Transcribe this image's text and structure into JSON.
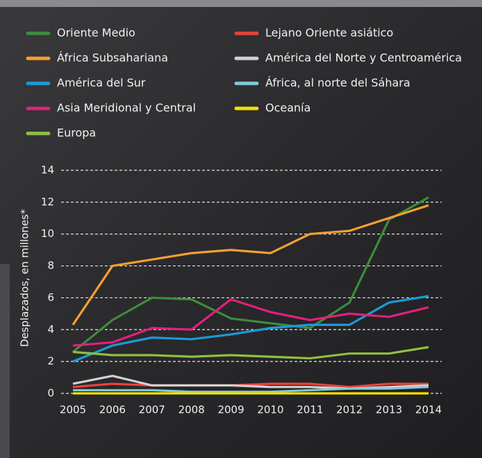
{
  "chart_data": {
    "type": "line",
    "ylabel": "Desplazados, en millones*",
    "x": [
      2005,
      2006,
      2007,
      2008,
      2009,
      2010,
      2011,
      2012,
      2013,
      2014
    ],
    "xlim": [
      2005,
      2014
    ],
    "xticks": [
      2005,
      2006,
      2007,
      2008,
      2009,
      2010,
      2011,
      2012,
      2013,
      2014
    ],
    "ylim": [
      0,
      14
    ],
    "yticks": [
      0,
      2,
      4,
      6,
      8,
      10,
      12,
      14
    ],
    "grid": true,
    "series": [
      {
        "name": "Oriente Medio",
        "color": "#3c8c3c",
        "values": [
          2.6,
          4.6,
          6.0,
          5.9,
          4.7,
          4.4,
          4.1,
          5.7,
          10.9,
          12.3
        ]
      },
      {
        "name": "África Subsahariana",
        "color": "#f5a032",
        "values": [
          4.3,
          8.0,
          8.4,
          8.8,
          9.0,
          8.8,
          10.0,
          10.2,
          11.0,
          11.8
        ]
      },
      {
        "name": "América del Sur",
        "color": "#1b9ad8",
        "values": [
          2.0,
          3.0,
          3.5,
          3.4,
          3.7,
          4.1,
          4.3,
          4.3,
          5.7,
          6.1
        ]
      },
      {
        "name": "Asia Meridional y Central",
        "color": "#e0217c",
        "values": [
          3.0,
          3.2,
          4.1,
          4.0,
          5.9,
          5.1,
          4.6,
          5.0,
          4.8,
          5.4
        ]
      },
      {
        "name": "Europa",
        "color": "#8dc142",
        "values": [
          2.6,
          2.4,
          2.4,
          2.3,
          2.4,
          2.3,
          2.2,
          2.5,
          2.5,
          2.9
        ]
      },
      {
        "name": "Lejano Oriente asiático",
        "color": "#e8443a",
        "values": [
          0.4,
          0.6,
          0.5,
          0.5,
          0.5,
          0.6,
          0.6,
          0.4,
          0.6,
          0.6
        ]
      },
      {
        "name": "América del Norte y Centroamérica",
        "color": "#d2d2d2",
        "values": [
          0.6,
          1.1,
          0.5,
          0.5,
          0.5,
          0.4,
          0.4,
          0.3,
          0.4,
          0.5
        ]
      },
      {
        "name": "África, al norte del Sáhara",
        "color": "#7ecad8",
        "values": [
          0.2,
          0.2,
          0.2,
          0.1,
          0.1,
          0.1,
          0.2,
          0.3,
          0.3,
          0.4
        ]
      },
      {
        "name": "Oceanía",
        "color": "#f2e200",
        "values": [
          0,
          0,
          0,
          0,
          0,
          0,
          0,
          0,
          0,
          0
        ]
      }
    ]
  }
}
